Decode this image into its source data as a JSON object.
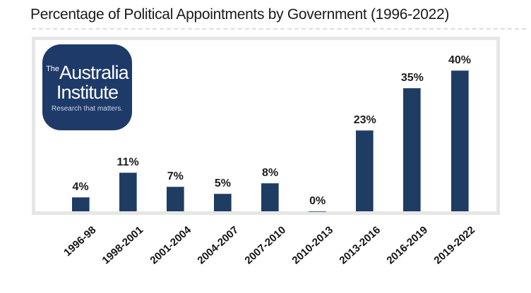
{
  "title": "Percentage of Political Appointments by Government (1996-2022)",
  "logo": {
    "prefix": "The",
    "line1": "Australia",
    "line2": "Institute",
    "tagline": "Research that matters."
  },
  "colors": {
    "bar": "#1f3c63",
    "logo_background": "#1e3a69",
    "plot_border": "#e6e6e6",
    "title_text": "#1a1a1a"
  },
  "chart_data": {
    "type": "bar",
    "title": "Percentage of Political Appointments by Government (1996-2022)",
    "categories": [
      "1996-98",
      "1998-2001",
      "2001-2004",
      "2004-2007",
      "2007-2010",
      "2010-2013",
      "2013-2016",
      "2016-2019",
      "2019-2022"
    ],
    "values": [
      4,
      11,
      7,
      5,
      8,
      0,
      23,
      35,
      40
    ],
    "data_labels": [
      "4%",
      "11%",
      "7%",
      "5%",
      "8%",
      "0%",
      "23%",
      "35%",
      "40%"
    ],
    "xlabel": "",
    "ylabel": "",
    "ylim": [
      0,
      45
    ],
    "grid": false,
    "legend": "none",
    "bar_color": "#1f3c63"
  }
}
